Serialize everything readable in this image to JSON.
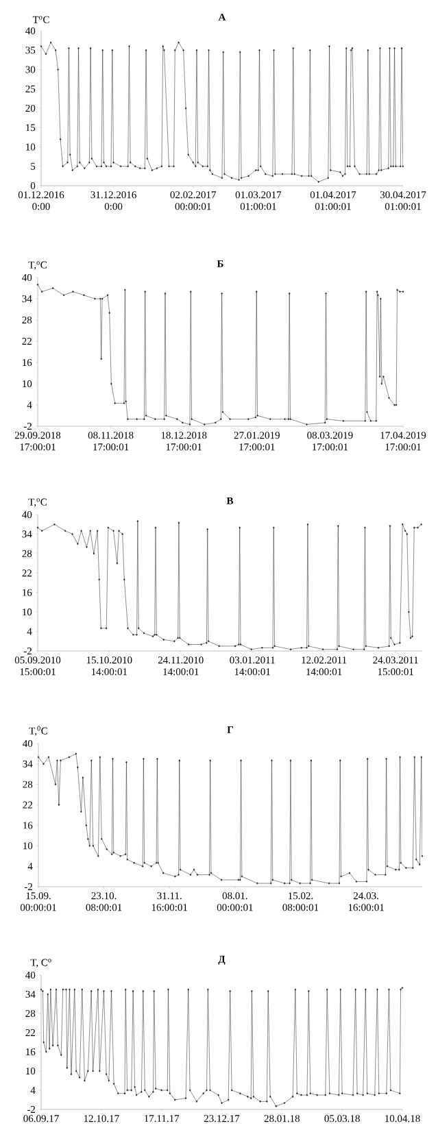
{
  "chart_data": [
    {
      "type": "line",
      "title": "А",
      "ylabel": "T$^{o}$C",
      "color": "#1a1a1a",
      "marker": "diamond",
      "xlim": [
        "2016-12-01T00:00",
        "2017-04-30T01:00"
      ],
      "ylim": [
        0,
        40
      ],
      "yticks": [
        0,
        5,
        10,
        15,
        20,
        25,
        30,
        35,
        40
      ],
      "xticks": [
        {
          "value": "2016-12-01T00:00",
          "label": "01.12.2016 0:00"
        },
        {
          "value": "2016-12-31T00:00",
          "label": "31.12.2016 0:00"
        },
        {
          "value": "2017-02-02T00:00",
          "label": "02.02.2017 00:00:01"
        },
        {
          "value": "2017-03-01T01:00",
          "label": "01.03.2017 01:00:01"
        },
        {
          "value": "2017-04-01T01:00",
          "label": "01.04.2017 01:00:01"
        },
        {
          "value": "2017-04-30T01:00",
          "label": "30.04.2017 01:00:01"
        }
      ],
      "x": [
        "2016-12-01",
        "2016-12-03",
        "2016-12-05",
        "2016-12-07",
        "2016-12-08",
        "2016-12-09",
        "2016-12-10",
        "2016-12-12",
        "2016-12-12T12:00",
        "2016-12-13",
        "2016-12-14",
        "2016-12-16",
        "2016-12-16T12:00",
        "2016-12-17",
        "2016-12-19",
        "2016-12-21",
        "2016-12-21T12:00",
        "2016-12-22",
        "2016-12-24",
        "2016-12-26",
        "2016-12-26T12:00",
        "2016-12-27",
        "2016-12-28",
        "2016-12-30",
        "2016-12-30T12:00",
        "2016-12-31",
        "2017-01-03",
        "2017-01-06",
        "2017-01-06T12:00",
        "2017-01-07",
        "2017-01-09",
        "2017-01-11",
        "2017-01-13",
        "2017-01-13T12:00",
        "2017-01-14",
        "2017-01-16",
        "2017-01-18",
        "2017-01-20",
        "2017-01-20T12:00",
        "2017-01-21",
        "2017-01-23",
        "2017-01-25",
        "2017-01-25T12:00",
        "2017-01-27",
        "2017-01-29",
        "2017-01-30",
        "2017-01-31",
        "2017-02-02",
        "2017-02-03",
        "2017-02-03T12:00",
        "2017-02-04",
        "2017-02-06",
        "2017-02-08",
        "2017-02-08T12:00",
        "2017-02-09",
        "2017-02-10",
        "2017-02-14",
        "2017-02-14T12:00",
        "2017-02-15",
        "2017-02-18",
        "2017-02-21",
        "2017-02-21T12:00",
        "2017-02-22",
        "2017-02-25",
        "2017-02-28",
        "2017-03-01",
        "2017-03-01T12:00",
        "2017-03-02",
        "2017-03-04",
        "2017-03-07",
        "2017-03-07T12:00",
        "2017-03-08",
        "2017-03-11",
        "2017-03-15",
        "2017-03-15T12:00",
        "2017-03-16",
        "2017-03-19",
        "2017-03-22",
        "2017-03-22T12:00",
        "2017-03-23",
        "2017-03-26",
        "2017-03-30",
        "2017-03-30T12:00",
        "2017-03-31",
        "2017-04-04",
        "2017-04-05",
        "2017-04-06",
        "2017-04-06T12:00",
        "2017-04-07",
        "2017-04-08",
        "2017-04-08T12:00",
        "2017-04-09",
        "2017-04-10",
        "2017-04-12",
        "2017-04-15",
        "2017-04-15T12:00",
        "2017-04-16",
        "2017-04-19",
        "2017-04-20",
        "2017-04-20T12:00",
        "2017-04-21",
        "2017-04-24",
        "2017-04-24T12:00",
        "2017-04-25",
        "2017-04-26",
        "2017-04-26T12:00",
        "2017-04-27",
        "2017-04-29",
        "2017-04-29T12:00",
        "2017-04-30"
      ],
      "values": [
        36,
        34,
        37,
        35,
        30,
        12,
        5,
        6,
        35.5,
        8,
        4,
        5,
        35.5,
        6,
        4.5,
        6,
        35.5,
        7,
        5,
        5,
        35,
        6,
        5,
        5,
        35,
        6,
        5,
        5,
        36,
        6,
        5,
        4.5,
        4.5,
        35,
        7,
        4,
        4.5,
        5,
        36,
        35,
        5,
        5,
        35,
        37,
        35,
        20,
        8,
        6,
        5,
        35,
        6,
        5,
        5,
        35,
        4,
        3,
        2,
        34.5,
        3,
        2,
        1.5,
        34.5,
        2,
        2.5,
        4,
        4,
        35,
        5,
        3,
        2.5,
        35,
        3,
        3,
        3,
        35.5,
        3,
        2.5,
        2.5,
        35,
        2.5,
        1,
        2,
        36,
        4,
        3.5,
        2.5,
        3,
        35.5,
        5,
        5,
        35,
        35.5,
        5,
        3,
        3,
        35,
        3,
        3,
        4,
        35.5,
        4,
        4.5,
        35.5,
        5,
        5,
        35.5,
        5,
        5,
        35.5,
        5
      ]
    },
    {
      "type": "line",
      "title": "Б",
      "ylabel": "T,$^{o}$C",
      "color": "#1a1a1a",
      "marker": "diamond",
      "xlim": [
        "2018-09-29T17:00",
        "2019-04-17T17:00"
      ],
      "ylim": [
        -2,
        40
      ],
      "yticks": [
        -2,
        4,
        10,
        16,
        22,
        28,
        34,
        40
      ],
      "xticks": [
        {
          "value": "2018-09-29T17:00",
          "label": "29.09.2018 17:00:01"
        },
        {
          "value": "2018-11-08T17:00",
          "label": "08.11.2018 17:00:01"
        },
        {
          "value": "2018-12-18T17:00",
          "label": "18.12.2018 17:00:01"
        },
        {
          "value": "2019-01-27T17:00",
          "label": "27.01.2019 17:00:01"
        },
        {
          "value": "2019-03-08T17:00",
          "label": "08.03.2019 17:00:01"
        },
        {
          "value": "2019-04-17T17:00",
          "label": "17.04.2019 17:00:01"
        }
      ],
      "x": [
        "2018-09-29T17:00",
        "2018-10-02",
        "2018-10-08",
        "2018-10-14",
        "2018-10-19",
        "2018-10-25",
        "2018-10-31",
        "2018-11-03",
        "2018-11-03T12:00",
        "2018-11-04",
        "2018-11-07",
        "2018-11-08",
        "2018-11-09",
        "2018-11-11",
        "2018-11-16",
        "2018-11-16T12:00",
        "2018-11-17",
        "2018-11-18",
        "2018-11-23",
        "2018-11-27",
        "2018-11-27T12:00",
        "2018-11-28",
        "2018-12-03",
        "2018-12-08",
        "2018-12-08T12:00",
        "2018-12-09",
        "2018-12-15",
        "2018-12-18",
        "2018-12-22",
        "2018-12-22T12:00",
        "2018-12-23",
        "2018-12-30",
        "2019-01-05",
        "2019-01-08",
        "2019-01-08T12:00",
        "2019-01-09",
        "2019-01-13",
        "2019-01-23",
        "2019-01-27",
        "2019-01-27T12:00",
        "2019-01-28",
        "2019-02-04",
        "2019-02-12",
        "2019-02-14",
        "2019-02-14T12:00",
        "2019-02-15",
        "2019-02-24",
        "2019-03-06",
        "2019-03-06T12:00",
        "2019-03-07",
        "2019-03-16",
        "2019-03-28",
        "2019-03-28T12:00",
        "2019-03-29",
        "2019-03-31",
        "2019-04-03",
        "2019-04-03T12:00",
        "2019-04-04",
        "2019-04-05",
        "2019-04-05T12:00",
        "2019-04-06",
        "2019-04-07",
        "2019-04-10",
        "2019-04-13",
        "2019-04-14",
        "2019-04-14T12:00",
        "2019-04-16",
        "2019-04-17T17:00"
      ],
      "values": [
        38,
        36,
        37,
        35,
        36,
        35,
        34,
        34,
        17,
        34,
        35,
        30,
        10,
        4.5,
        4.5,
        36.5,
        5,
        0,
        0,
        0,
        36,
        1,
        0,
        0,
        35.5,
        1,
        0,
        -1,
        -1.5,
        36,
        0,
        -1.5,
        -1,
        0,
        35.5,
        2,
        0,
        0,
        0.5,
        36,
        1,
        0,
        0,
        0,
        35.5,
        0,
        -1.5,
        -1,
        35.5,
        0,
        -0.5,
        -0.5,
        36,
        2,
        -0.5,
        -0.5,
        36,
        35,
        12,
        34,
        10,
        12,
        6,
        4,
        4,
        36.5,
        36,
        36
      ]
    },
    {
      "type": "line",
      "title": "В",
      "ylabel": "T,$^{o}$C",
      "color": "#1a1a1a",
      "marker": "diamond",
      "xlim": [
        "2010-09-05T15:00",
        "2011-04-08T12:00"
      ],
      "ylim": [
        -2,
        40
      ],
      "yticks": [
        -2,
        4,
        10,
        16,
        22,
        28,
        34,
        40
      ],
      "xticks": [
        {
          "value": "2010-09-05T15:00",
          "label": "05.09.2010 15:00:01"
        },
        {
          "value": "2010-10-15T14:00",
          "label": "15.10.2010 14:00:01"
        },
        {
          "value": "2010-11-24T14:00",
          "label": "24.11.2010 14:00:01"
        },
        {
          "value": "2011-01-03T14:00",
          "label": "03.01.2011 14:00:01"
        },
        {
          "value": "2011-02-12T14:00",
          "label": "12.02.2011 14:00:01"
        },
        {
          "value": "2011-03-24T15:00",
          "label": "24.03.2011 15:00:01"
        }
      ],
      "x": [
        "2010-09-05T15:00",
        "2010-09-08",
        "2010-09-15",
        "2010-09-21",
        "2010-09-25",
        "2010-09-28",
        "2010-09-30",
        "2010-10-03",
        "2010-10-05",
        "2010-10-07",
        "2010-10-09",
        "2010-10-10",
        "2010-10-11",
        "2010-10-14",
        "2010-10-15",
        "2010-10-18",
        "2010-10-20",
        "2010-10-21",
        "2010-10-23",
        "2010-10-24",
        "2010-10-26",
        "2010-10-29",
        "2010-10-31",
        "2010-10-31T12:00",
        "2010-11-01",
        "2010-11-04",
        "2010-11-09",
        "2010-11-10",
        "2010-11-10T12:00",
        "2010-11-11",
        "2010-11-15",
        "2010-11-21",
        "2010-11-23",
        "2010-11-23T12:00",
        "2010-11-24",
        "2010-11-29",
        "2010-12-06",
        "2010-12-09",
        "2010-12-09T12:00",
        "2010-12-10",
        "2010-12-16",
        "2010-12-25",
        "2010-12-27",
        "2010-12-27T12:00",
        "2010-12-28",
        "2011-01-03",
        "2011-01-09",
        "2011-01-15",
        "2011-01-15T12:00",
        "2011-01-16",
        "2011-01-25",
        "2011-01-31",
        "2011-02-03",
        "2011-02-03T12:00",
        "2011-02-04",
        "2011-02-12",
        "2011-02-20",
        "2011-02-20T12:00",
        "2011-02-21",
        "2011-03-01",
        "2011-03-07",
        "2011-03-07T12:00",
        "2011-03-08",
        "2011-03-15",
        "2011-03-21",
        "2011-03-21T12:00",
        "2011-03-22",
        "2011-03-24",
        "2011-03-27",
        "2011-03-28T12:00",
        "2011-03-30",
        "2011-03-31",
        "2011-04-01",
        "2011-04-02",
        "2011-04-03",
        "2011-04-04",
        "2011-04-06",
        "2011-04-08"
      ],
      "values": [
        36,
        35,
        37,
        35,
        34,
        31,
        35,
        30,
        35,
        28,
        35,
        20,
        5,
        5,
        36,
        35,
        25,
        35,
        34,
        20,
        5,
        3,
        3,
        38,
        5,
        3.5,
        2.5,
        3,
        36,
        3,
        1.5,
        1,
        2,
        37.5,
        2,
        0,
        0,
        0.5,
        35.5,
        1,
        -0.5,
        -0.5,
        0,
        36,
        0,
        -1.5,
        -1,
        -1,
        36,
        -0.5,
        -1.5,
        -1,
        -1,
        37,
        -0.5,
        -1.5,
        -1.5,
        36.5,
        -0.5,
        -1.5,
        -1.5,
        36,
        -0.5,
        -1,
        -0.5,
        36.5,
        2,
        0,
        0.5,
        37,
        35,
        34,
        10,
        2,
        2.5,
        36,
        36,
        37
      ]
    },
    {
      "type": "line",
      "title": "Г",
      "ylabel": "T,$^{0}$C",
      "color": "#1a1a1a",
      "marker": "diamond",
      "xlim": [
        "2015-09-15T00:00",
        "2016-04-26T12:00"
      ],
      "ylim": [
        -2,
        40
      ],
      "yticks": [
        -2,
        4,
        10,
        16,
        22,
        28,
        34,
        40
      ],
      "xticks": [
        {
          "value": "2015-09-15T00:00",
          "label": "15.09. 00:00:01"
        },
        {
          "value": "2015-10-23T08:00",
          "label": "23.10. 08:00:01"
        },
        {
          "value": "2015-11-30T16:00",
          "label": "31.11. 16:00:01"
        },
        {
          "value": "2016-01-08T00:00",
          "label": "08.01. 00:00:01"
        },
        {
          "value": "2016-02-15T08:00",
          "label": "15.02. 08:00:01"
        },
        {
          "value": "2016-03-24T16:00",
          "label": "24.03. 16:00:01"
        }
      ],
      "x": [
        "2015-09-15",
        "2015-09-18",
        "2015-09-21",
        "2015-09-25",
        "2015-09-26",
        "2015-09-27",
        "2015-09-28",
        "2015-10-03",
        "2015-10-07",
        "2015-10-08",
        "2015-10-10",
        "2015-10-11",
        "2015-10-13",
        "2015-10-14",
        "2015-10-15",
        "2015-10-16",
        "2015-10-17",
        "2015-10-20",
        "2015-10-21",
        "2015-10-22",
        "2015-10-25",
        "2015-10-28",
        "2015-10-28T12:00",
        "2015-10-29",
        "2015-11-02",
        "2015-11-05",
        "2015-11-05T12:00",
        "2015-11-06",
        "2015-11-10",
        "2015-11-15",
        "2015-11-15T12:00",
        "2015-11-16",
        "2015-11-20",
        "2015-11-23",
        "2015-11-23T12:00",
        "2015-11-24",
        "2015-11-27",
        "2015-12-04",
        "2015-12-06",
        "2015-12-06T12:00",
        "2015-12-07",
        "2015-12-13",
        "2015-12-15",
        "2015-12-17",
        "2015-12-24",
        "2015-12-24T12:00",
        "2015-12-25",
        "2015-12-31",
        "2016-01-10",
        "2016-01-11",
        "2016-01-11T12:00",
        "2016-01-12",
        "2016-01-21",
        "2016-01-29",
        "2016-01-29T12:00",
        "2016-01-30",
        "2016-02-06",
        "2016-02-09",
        "2016-02-09T12:00",
        "2016-02-10",
        "2016-02-15",
        "2016-02-21",
        "2016-02-21T12:00",
        "2016-02-22",
        "2016-03-03",
        "2016-03-09",
        "2016-03-09T12:00",
        "2016-03-10",
        "2016-03-15",
        "2016-03-19",
        "2016-03-25",
        "2016-03-25T12:00",
        "2016-03-26",
        "2016-03-30",
        "2016-04-05",
        "2016-04-05T12:00",
        "2016-04-06",
        "2016-04-11",
        "2016-04-13",
        "2016-04-13T12:00",
        "2016-04-14",
        "2016-04-17",
        "2016-04-21",
        "2016-04-22",
        "2016-04-23",
        "2016-04-25",
        "2016-04-26",
        "2016-04-26T12:00"
      ],
      "values": [
        36,
        34,
        36,
        28,
        35,
        22,
        35,
        36,
        37,
        33,
        20,
        30,
        16,
        12,
        10,
        35,
        10,
        7,
        36,
        12,
        9,
        7.5,
        35.5,
        8,
        7,
        7.5,
        34.5,
        6,
        5,
        4,
        35.5,
        5,
        4,
        5,
        35.5,
        5,
        2,
        1,
        1.5,
        35,
        3,
        1.5,
        3,
        1.5,
        1.5,
        35,
        2,
        0,
        0,
        0,
        35,
        1,
        -1,
        -1,
        35,
        0,
        -1,
        -1,
        35,
        0,
        -1,
        -1,
        35,
        0,
        -1,
        -1,
        35,
        1,
        2,
        -0.5,
        -0.5,
        35.5,
        3,
        1.5,
        1.5,
        35.5,
        4,
        3,
        3,
        36,
        5,
        3.5,
        3.5,
        36,
        6,
        4.5,
        36,
        7
      ]
    },
    {
      "type": "line",
      "title": "Д",
      "ylabel": "T, C$^{o}$",
      "color": "#1a1a1a",
      "marker": "diamond",
      "xlim": [
        "2017-09-06",
        "2018-04-10"
      ],
      "ylim": [
        -2,
        40
      ],
      "yticks": [
        -2,
        4,
        10,
        16,
        22,
        28,
        34,
        40
      ],
      "xticks": [
        {
          "value": "2017-09-06",
          "label": "06.09.17"
        },
        {
          "value": "2017-10-12",
          "label": "12.10.17"
        },
        {
          "value": "2017-11-17",
          "label": "17.11.17"
        },
        {
          "value": "2017-12-23",
          "label": "23.12.17"
        },
        {
          "value": "2018-01-28",
          "label": "28.01.18"
        },
        {
          "value": "2018-03-05",
          "label": "05.03.18"
        },
        {
          "value": "2018-04-10",
          "label": "10.04.18"
        }
      ],
      "x": [
        "2017-09-06",
        "2017-09-07",
        "2017-09-07T12:00",
        "2017-09-09",
        "2017-09-10",
        "2017-09-11",
        "2017-09-11T16:00",
        "2017-09-13",
        "2017-09-15",
        "2017-09-16",
        "2017-09-18",
        "2017-09-19",
        "2017-09-21",
        "2017-09-21T12:00",
        "2017-09-23",
        "2017-09-24",
        "2017-09-26",
        "2017-09-27",
        "2017-09-29",
        "2017-09-30T12:00",
        "2017-10-02",
        "2017-10-04",
        "2017-10-06",
        "2017-10-07",
        "2017-10-10",
        "2017-10-11",
        "2017-10-13T12:00",
        "2017-10-15",
        "2017-10-16T12:00",
        "2017-10-18",
        "2017-10-19T12:00",
        "2017-10-22",
        "2017-10-26",
        "2017-10-26T12:00",
        "2017-10-27T12:00",
        "2017-10-30",
        "2017-10-31",
        "2017-11-01",
        "2017-11-02",
        "2017-11-05",
        "2017-11-06",
        "2017-11-07",
        "2017-11-09T12:00",
        "2017-11-12",
        "2017-11-12T12:00",
        "2017-11-13T12:00",
        "2017-11-17",
        "2017-11-20T12:00",
        "2017-11-21",
        "2017-11-22",
        "2017-11-25",
        "2017-12-01T12:00",
        "2017-12-03",
        "2017-12-04",
        "2017-12-08",
        "2017-12-12",
        "2017-12-14",
        "2017-12-14T18:00",
        "2017-12-16",
        "2017-12-21",
        "2017-12-23",
        "2017-12-27",
        "2017-12-28",
        "2017-12-29",
        "2018-01-03",
        "2018-01-07T12:00",
        "2018-01-09T12:00",
        "2018-01-10",
        "2018-01-11",
        "2018-01-15",
        "2018-01-19",
        "2018-01-19T18:00",
        "2018-01-21",
        "2018-01-24T12:00",
        "2018-01-29T12:00",
        "2018-02-03T12:00",
        "2018-02-05",
        "2018-02-06",
        "2018-02-08T12:00",
        "2018-02-12",
        "2018-02-13",
        "2018-02-14",
        "2018-02-18",
        "2018-02-23",
        "2018-02-24",
        "2018-02-25T12:00",
        "2018-03-03",
        "2018-03-04",
        "2018-03-05",
        "2018-03-11T12:00",
        "2018-03-13",
        "2018-03-14",
        "2018-03-17T12:00",
        "2018-03-19",
        "2018-03-20",
        "2018-03-24T12:00",
        "2018-03-26",
        "2018-03-27",
        "2018-03-31T12:00",
        "2018-04-02",
        "2018-04-03",
        "2018-04-08T12:00",
        "2018-04-09",
        "2018-04-10"
      ],
      "values": [
        35.5,
        35,
        19,
        16,
        34,
        17,
        35.5,
        18,
        35.5,
        18,
        15,
        35.5,
        35.5,
        11,
        35.5,
        9,
        35.5,
        10,
        8,
        35.5,
        7,
        10,
        35,
        10,
        35.5,
        10,
        35,
        9,
        7,
        35,
        6,
        3,
        3,
        35.5,
        4,
        4,
        35,
        5,
        2.5,
        3.5,
        35,
        4,
        2,
        3.5,
        35,
        4.5,
        4,
        4,
        35.5,
        3,
        1,
        1.5,
        35.5,
        4,
        0.5,
        3,
        4,
        35.5,
        4,
        2.5,
        0,
        1,
        35,
        4,
        3,
        2,
        1.5,
        35,
        2,
        0.5,
        0.5,
        35,
        2,
        -1,
        0,
        2,
        35.5,
        3,
        2.5,
        2.5,
        35,
        3,
        2.5,
        2.5,
        35.5,
        3,
        2.5,
        35.5,
        3,
        2.5,
        35.5,
        3,
        2.5,
        35.5,
        3,
        2.5,
        35.5,
        3,
        3,
        35.5,
        4,
        3,
        35.5,
        36
      ]
    }
  ]
}
